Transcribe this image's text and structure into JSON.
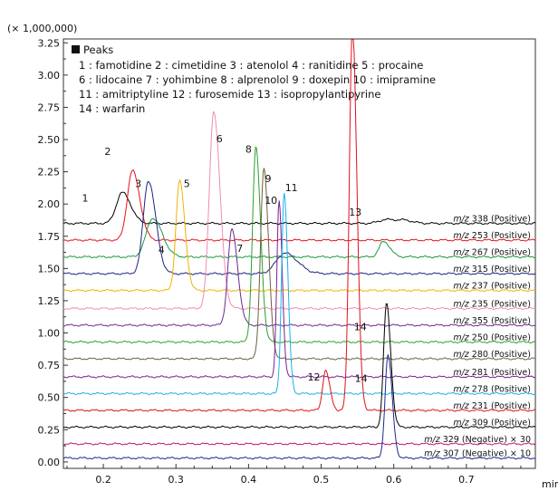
{
  "chart_data": {
    "type": "line",
    "multiplier": "(× 1,000,000)",
    "xlabel": "min",
    "xlim": [
      0.145,
      0.795
    ],
    "ylim": [
      -0.05,
      3.28
    ],
    "xticks": [
      "0.2",
      "0.3",
      "0.4",
      "0.5",
      "0.6",
      "0.7"
    ],
    "xtick_values": [
      0.2,
      0.3,
      0.4,
      0.5,
      0.6,
      0.7
    ],
    "yticks": [
      "0.00",
      "0.25",
      "0.50",
      "0.75",
      "1.00",
      "1.25",
      "1.50",
      "1.75",
      "2.00",
      "2.25",
      "2.50",
      "2.75",
      "3.00",
      "3.25"
    ],
    "ytick_values": [
      0,
      0.25,
      0.5,
      0.75,
      1.0,
      1.25,
      1.5,
      1.75,
      2.0,
      2.25,
      2.5,
      2.75,
      3.0,
      3.25
    ],
    "legend": {
      "title": "Peaks",
      "lines": [
        "1 : famotidine  2 : cimetidine  3 : atenolol  4 : ranitidine  5 : procaine",
        "6 : lidocaine  7 : yohimbine  8 : alprenolol  9 : doxepin  10 : imipramine",
        "11 : amitriptyline  12 : furosemide  13 : isopropylantipyrine",
        "14 : warfarin"
      ]
    },
    "series": [
      {
        "mz": "m/z",
        "label": " 338 (Positive)",
        "color": "#000000",
        "baseline": 1.85,
        "peaks": [
          [
            0.226,
            0.24,
            0.008
          ],
          [
            0.59,
            0.03,
            0.01
          ],
          [
            0.615,
            0.02,
            0.008
          ]
        ]
      },
      {
        "mz": "m/z",
        "label": " 253 (Positive)",
        "color": "#e8101a",
        "baseline": 1.72,
        "peaks": [
          [
            0.24,
            0.54,
            0.007
          ]
        ]
      },
      {
        "mz": "m/z",
        "label": " 267 (Positive)",
        "color": "#1a9a3a",
        "baseline": 1.59,
        "peaks": [
          [
            0.268,
            0.3,
            0.009
          ],
          [
            0.586,
            0.12,
            0.006
          ]
        ]
      },
      {
        "mz": "m/z",
        "label": " 315 (Positive)",
        "color": "#1a237e",
        "baseline": 1.46,
        "peaks": [
          [
            0.262,
            0.72,
            0.007
          ],
          [
            0.45,
            0.16,
            0.012
          ]
        ]
      },
      {
        "mz": "m/z",
        "label": " 237 (Positive)",
        "color": "#f0b400",
        "baseline": 1.33,
        "peaks": [
          [
            0.305,
            0.85,
            0.005
          ]
        ]
      },
      {
        "mz": "m/z",
        "label": " 235 (Positive)",
        "color": "#f08cb4",
        "baseline": 1.19,
        "peaks": [
          [
            0.352,
            1.53,
            0.006
          ]
        ]
      },
      {
        "mz": "m/z",
        "label": " 355 (Positive)",
        "color": "#6a2a90",
        "baseline": 1.06,
        "peaks": [
          [
            0.377,
            0.74,
            0.0055
          ]
        ]
      },
      {
        "mz": "m/z",
        "label": " 250 (Positive)",
        "color": "#2aa02a",
        "baseline": 0.93,
        "peaks": [
          [
            0.41,
            1.51,
            0.0045
          ]
        ]
      },
      {
        "mz": "m/z",
        "label": " 280 (Positive)",
        "color": "#6e6040",
        "baseline": 0.8,
        "peaks": [
          [
            0.421,
            1.48,
            0.0045
          ]
        ]
      },
      {
        "mz": "m/z",
        "label": " 281 (Positive)",
        "color": "#7a1e90",
        "baseline": 0.66,
        "peaks": [
          [
            0.442,
            1.36,
            0.003
          ]
        ]
      },
      {
        "mz": "m/z",
        "label": " 278 (Positive)",
        "color": "#1ab2e6",
        "baseline": 0.53,
        "peaks": [
          [
            0.449,
            1.56,
            0.0035
          ]
        ]
      },
      {
        "mz": "m/z",
        "label": " 231 (Positive)",
        "color": "#e0101a",
        "baseline": 0.4,
        "peaks": [
          [
            0.506,
            0.31,
            0.004
          ],
          [
            0.543,
            3.0,
            0.0042
          ]
        ]
      },
      {
        "mz": "m/z",
        "label": " 309 (Positive)",
        "color": "#000000",
        "baseline": 0.27,
        "peaks": [
          [
            0.59,
            0.96,
            0.004
          ]
        ]
      },
      {
        "mz": "m/z",
        "label": " 329 (Negative) × 30",
        "color": "#c0107a",
        "baseline": 0.14,
        "peaks": []
      },
      {
        "mz": "m/z",
        "label": " 307 (Negative) × 10",
        "color": "#1a2a8a",
        "baseline": 0.03,
        "peaks": [
          [
            0.592,
            0.8,
            0.004
          ]
        ]
      }
    ],
    "annotations": [
      {
        "text": "1",
        "x": 0.175,
        "y": 2.02
      },
      {
        "text": "2",
        "x": 0.206,
        "y": 2.38
      },
      {
        "text": "3",
        "x": 0.248,
        "y": 2.13
      },
      {
        "text": "4",
        "x": 0.28,
        "y": 1.62
      },
      {
        "text": "5",
        "x": 0.315,
        "y": 2.13
      },
      {
        "text": "6",
        "x": 0.36,
        "y": 2.48
      },
      {
        "text": "7",
        "x": 0.388,
        "y": 1.63
      },
      {
        "text": "8",
        "x": 0.4,
        "y": 2.4
      },
      {
        "text": "9",
        "x": 0.427,
        "y": 2.17
      },
      {
        "text": "10",
        "x": 0.431,
        "y": 2.0
      },
      {
        "text": "11",
        "x": 0.459,
        "y": 2.1
      },
      {
        "text": "12",
        "x": 0.49,
        "y": 0.63
      },
      {
        "text": "13",
        "x": 0.547,
        "y": 1.91
      },
      {
        "text": "14",
        "x": 0.554,
        "y": 1.02
      },
      {
        "text": "14",
        "x": 0.555,
        "y": 0.62
      }
    ]
  }
}
